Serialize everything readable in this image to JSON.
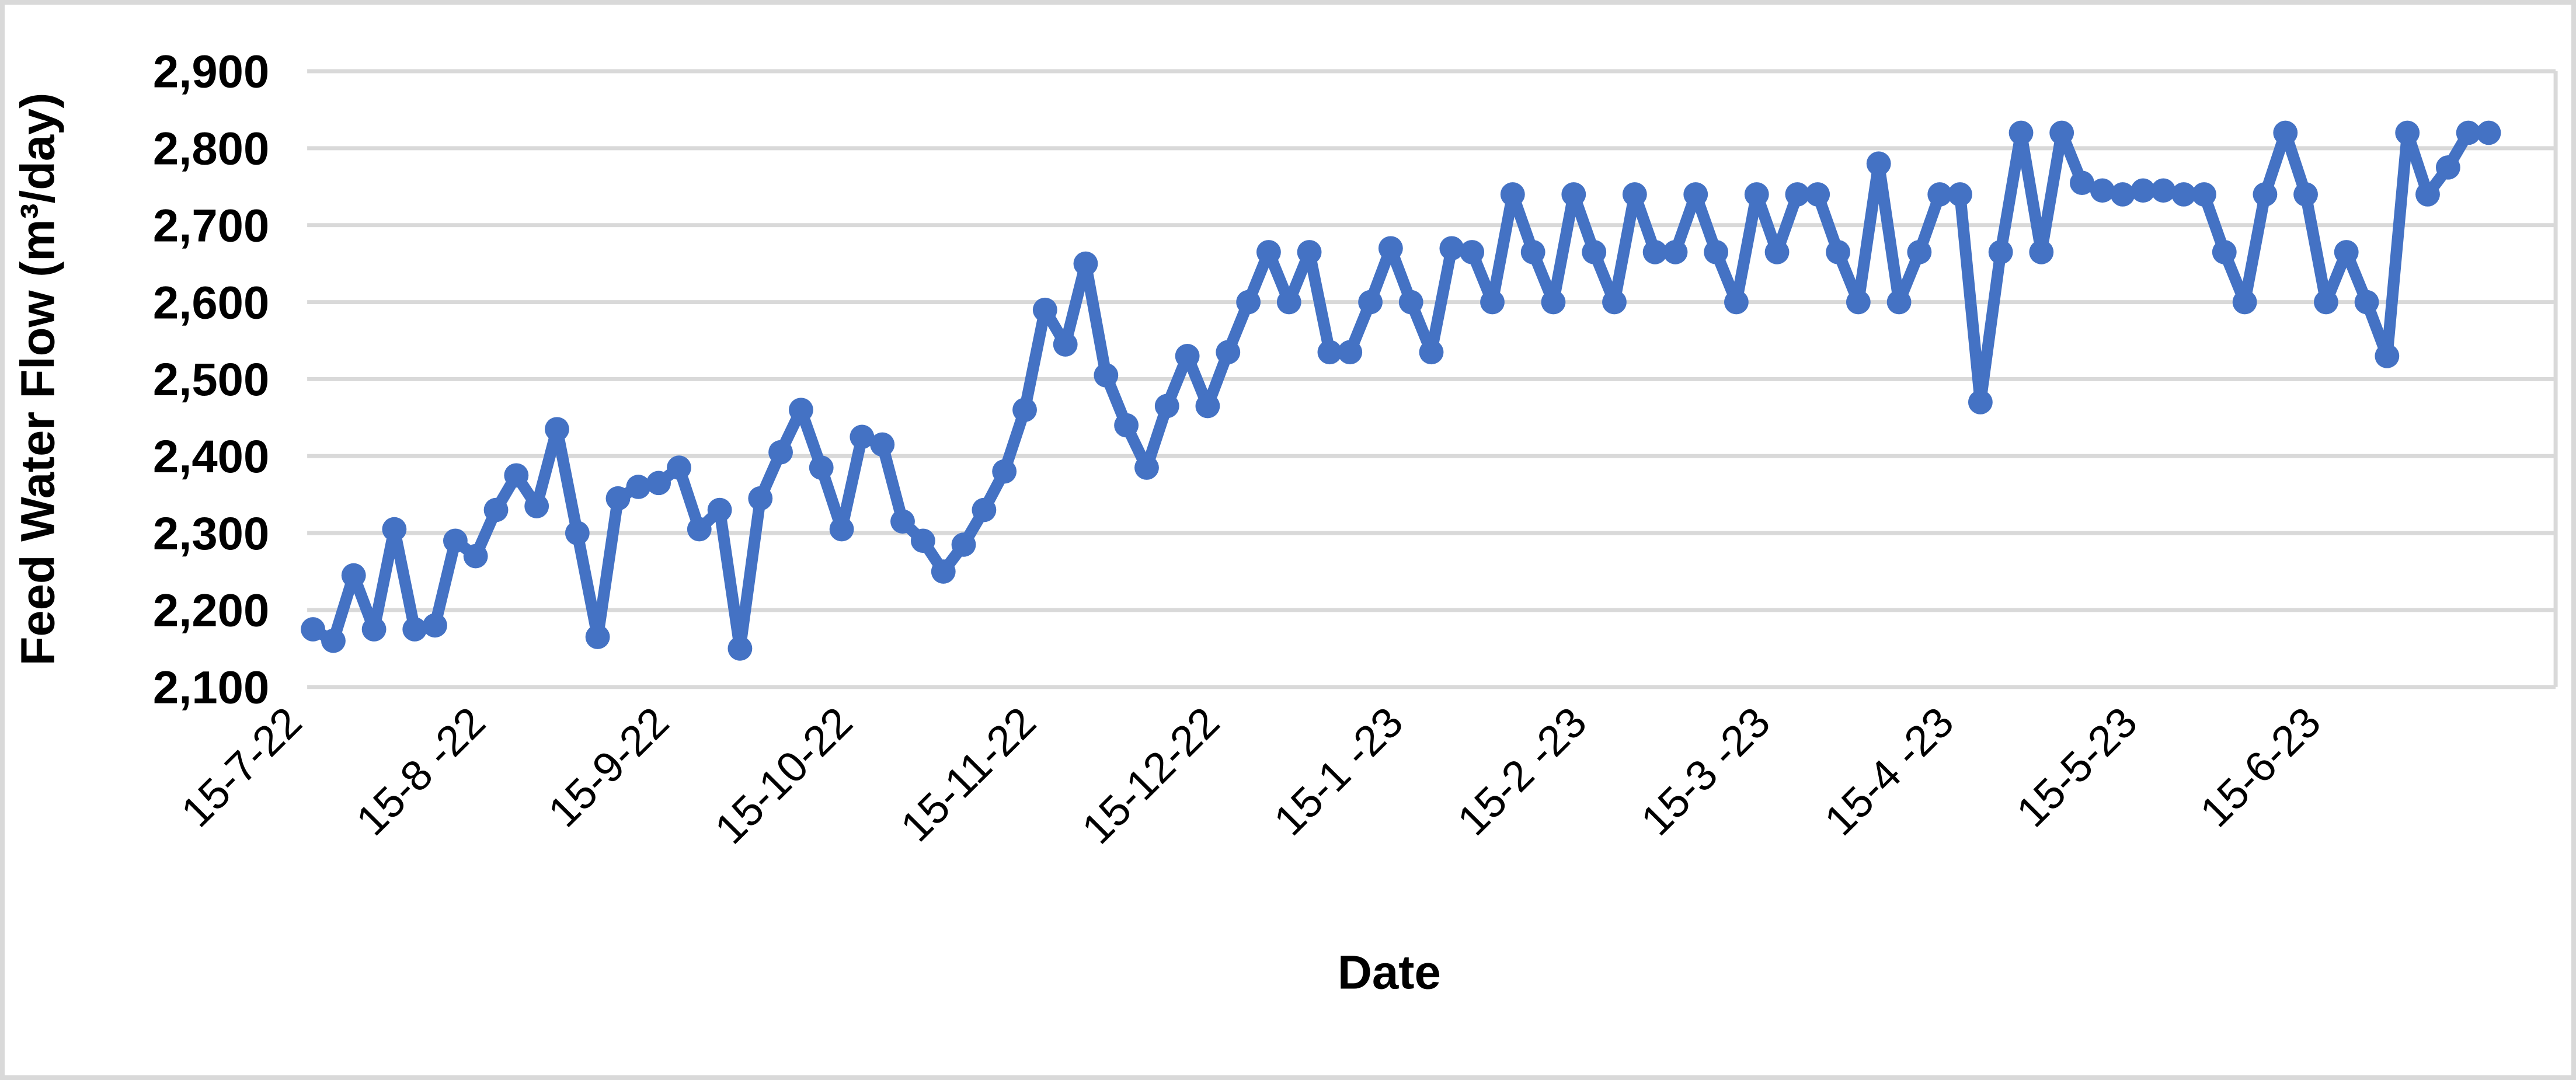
{
  "figure": {
    "background": "#ffffff",
    "border_color": "#d9d9d9"
  },
  "chart_data": {
    "type": "line",
    "title": "",
    "xlabel": "Date",
    "ylabel": "Feed Water Flow (m³/day)",
    "legend_position": "none",
    "grid": "horizontal",
    "grid_color": "#d9d9d9",
    "line_color": "#4472C4",
    "marker": "circle",
    "series_name": "Feed Water Flow",
    "ylim": [
      2100,
      2900
    ],
    "yticks": [
      2900,
      2800,
      2700,
      2600,
      2500,
      2400,
      2300,
      2200,
      2100
    ],
    "ytick_labels": [
      "2,900",
      "2,800",
      "2,700",
      "2,600",
      "2,500",
      "2,400",
      "2,300",
      "2,200",
      "2,100"
    ],
    "x_tick_labels": [
      "15-7-22",
      "15-8 -22",
      "15-9-22",
      "15-10-22",
      "15-11-22",
      "15-12-22",
      "15-1 -23",
      "15-2 -23",
      "15-3 -23",
      "15-4 -23",
      "15-5-23",
      "15-6-23"
    ],
    "values": [
      2175,
      2160,
      2245,
      2175,
      2305,
      2175,
      2180,
      2290,
      2270,
      2330,
      2375,
      2335,
      2435,
      2300,
      2165,
      2345,
      2360,
      2365,
      2385,
      2305,
      2330,
      2150,
      2345,
      2405,
      2460,
      2385,
      2305,
      2425,
      2415,
      2315,
      2290,
      2250,
      2285,
      2330,
      2380,
      2460,
      2590,
      2545,
      2650,
      2505,
      2440,
      2385,
      2465,
      2530,
      2465,
      2535,
      2600,
      2665,
      2600,
      2665,
      2535,
      2535,
      2600,
      2670,
      2600,
      2535,
      2670,
      2665,
      2600,
      2740,
      2665,
      2600,
      2740,
      2665,
      2600,
      2740,
      2665,
      2665,
      2740,
      2665,
      2600,
      2740,
      2665,
      2740,
      2740,
      2665,
      2600,
      2780,
      2600,
      2665,
      2740,
      2740,
      2470,
      2665,
      2820,
      2665,
      2820,
      2755,
      2745,
      2740,
      2745,
      2745,
      2740,
      2740,
      2665,
      2600,
      2740,
      2820,
      2740,
      2600,
      2665,
      2600,
      2530,
      2820,
      2740,
      2775,
      2820,
      2820
    ]
  },
  "layout_note": "single line chart, no legend, no chart title"
}
